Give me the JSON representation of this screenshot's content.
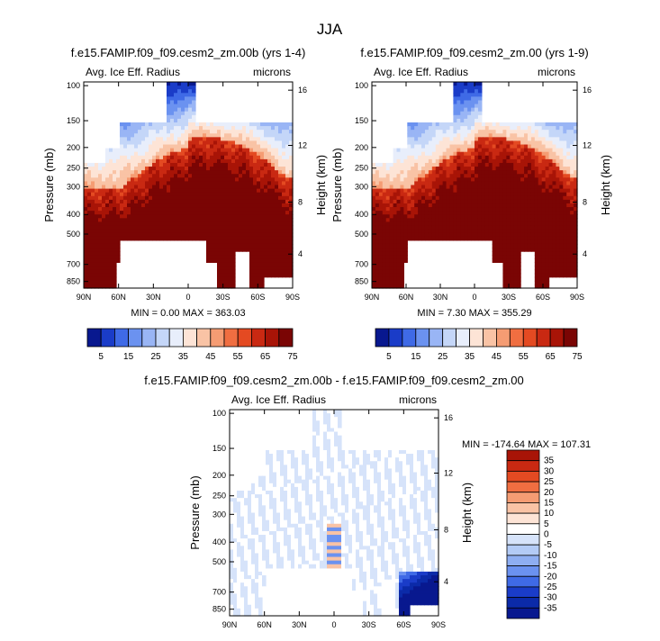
{
  "figure": {
    "title": "JJA"
  },
  "chart_data": [
    {
      "type": "heatmap",
      "title": "f.e15.FAMIP.f09_f09.cesm2_zm.00b (yrs 1-4)",
      "left_label": "Avg. Ice Eff. Radius",
      "right_label": "microns",
      "ylabel": "Pressure (mb)",
      "y2label": "Height (km)",
      "x_ticks": [
        "90N",
        "60N",
        "30N",
        "0",
        "30S",
        "60S",
        "90S"
      ],
      "y_ticks": [
        "100",
        "150",
        "200",
        "250",
        "300",
        "400",
        "500",
        "700",
        "850"
      ],
      "y2_ticks": [
        "16",
        "12",
        "8",
        "4"
      ],
      "stats": "MIN =   0.00   MAX = 363.03",
      "field": "mean",
      "colorbar": {
        "labels": [
          "5",
          "15",
          "25",
          "35",
          "45",
          "55",
          "65",
          "75"
        ],
        "colors": [
          "#08188f",
          "#1a3cc8",
          "#3f6ae6",
          "#6b92f0",
          "#99b5f5",
          "#c4d6f8",
          "#e8eefb",
          "#fde4d6",
          "#f9c3a5",
          "#f59c73",
          "#f06e41",
          "#e44a22",
          "#c92912",
          "#a81407",
          "#7a0504"
        ]
      }
    },
    {
      "type": "heatmap",
      "title": "f.e15.FAMIP.f09_f09.cesm2_zm.00 (yrs 1-9)",
      "left_label": "Avg. Ice Eff. Radius",
      "right_label": "microns",
      "ylabel": "Pressure (mb)",
      "y2label": "Height (km)",
      "x_ticks": [
        "90N",
        "60N",
        "30N",
        "0",
        "30S",
        "60S",
        "90S"
      ],
      "y_ticks": [
        "100",
        "150",
        "200",
        "250",
        "300",
        "400",
        "500",
        "700",
        "850"
      ],
      "y2_ticks": [
        "16",
        "12",
        "8",
        "4"
      ],
      "stats": "MIN =   7.30   MAX = 355.29",
      "field": "mean",
      "colorbar": {
        "labels": [
          "5",
          "15",
          "25",
          "35",
          "45",
          "55",
          "65",
          "75"
        ],
        "colors": [
          "#08188f",
          "#1a3cc8",
          "#3f6ae6",
          "#6b92f0",
          "#99b5f5",
          "#c4d6f8",
          "#e8eefb",
          "#fde4d6",
          "#f9c3a5",
          "#f59c73",
          "#f06e41",
          "#e44a22",
          "#c92912",
          "#a81407",
          "#7a0504"
        ]
      }
    },
    {
      "type": "heatmap",
      "title": "f.e15.FAMIP.f09_f09.cesm2_zm.00b - f.e15.FAMIP.f09_f09.cesm2_zm.00",
      "left_label": "Avg. Ice Eff. Radius",
      "right_label": "microns",
      "ylabel": "Pressure (mb)",
      "y2label": "Height (km)",
      "x_ticks": [
        "90N",
        "60N",
        "30N",
        "0",
        "30S",
        "60S",
        "90S"
      ],
      "y_ticks": [
        "100",
        "150",
        "200",
        "250",
        "300",
        "400",
        "500",
        "700",
        "850"
      ],
      "y2_ticks": [
        "16",
        "12",
        "8",
        "4"
      ],
      "stats": "MIN = -174.64   MAX = 107.31",
      "field": "diff",
      "colorbar": {
        "labels": [
          "35",
          "30",
          "25",
          "20",
          "15",
          "10",
          "5",
          "0",
          "-5",
          "-10",
          "-15",
          "-20",
          "-25",
          "-30",
          "-35"
        ],
        "colors": [
          "#a81407",
          "#c92912",
          "#e44a22",
          "#f06e41",
          "#f59c73",
          "#f9c3a5",
          "#fde4d6",
          "#ffffff",
          "#d6e3fa",
          "#b3cbf6",
          "#8eaef2",
          "#6b92f0",
          "#3f6ae6",
          "#1a3cc8",
          "#0b2aa8",
          "#08188f"
        ]
      }
    }
  ]
}
